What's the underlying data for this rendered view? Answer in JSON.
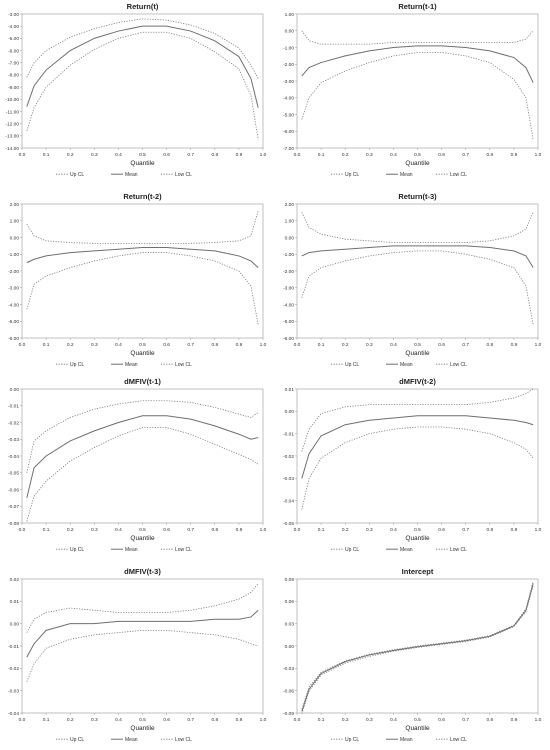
{
  "chart_data": [
    {
      "type": "line",
      "title": "Return(t)",
      "xlabel": "Quantile",
      "ylabel": "",
      "xlim": [
        0.0,
        1.0
      ],
      "ylim": [
        -14.0,
        -3.0
      ],
      "xticks": [
        "0.0",
        "0.1",
        "0.2",
        "0.3",
        "0.4",
        "0.5",
        "0.6",
        "0.7",
        "0.8",
        "0.9",
        "1.0"
      ],
      "yticks": [
        "-3.00",
        "-4.00",
        "-5.00",
        "-6.00",
        "-7.00",
        "-8.00",
        "-9.00",
        "-10.00",
        "-11.00",
        "-12.00",
        "-13.00",
        "-14.00"
      ],
      "x": [
        0.02,
        0.05,
        0.1,
        0.2,
        0.3,
        0.4,
        0.5,
        0.6,
        0.7,
        0.8,
        0.9,
        0.95,
        0.98
      ],
      "series": [
        {
          "name": "Up CL",
          "style": "dotted",
          "values": [
            -8.2,
            -7.0,
            -6.0,
            -4.9,
            -4.2,
            -3.7,
            -3.4,
            -3.5,
            -3.9,
            -4.6,
            -5.8,
            -7.2,
            -8.3
          ]
        },
        {
          "name": "Mean",
          "style": "solid",
          "values": [
            -10.6,
            -8.9,
            -7.6,
            -6.0,
            -5.0,
            -4.4,
            -4.0,
            -4.0,
            -4.4,
            -5.2,
            -6.5,
            -8.3,
            -10.7
          ]
        },
        {
          "name": "Low CL",
          "style": "dotted",
          "values": [
            -12.6,
            -10.7,
            -9.0,
            -7.2,
            -5.9,
            -5.0,
            -4.5,
            -4.5,
            -5.0,
            -6.1,
            -7.5,
            -9.7,
            -13.3
          ]
        }
      ]
    },
    {
      "type": "line",
      "title": "Return(t-1)",
      "xlabel": "Quantile",
      "ylabel": "",
      "xlim": [
        0.0,
        1.0
      ],
      "ylim": [
        -7.0,
        1.0
      ],
      "xticks": [
        "0.0",
        "0.1",
        "0.2",
        "0.3",
        "0.4",
        "0.5",
        "0.6",
        "0.7",
        "0.8",
        "0.9",
        "1.0"
      ],
      "yticks": [
        "1.00",
        "0.00",
        "-1.00",
        "-2.00",
        "-3.00",
        "-4.00",
        "-5.00",
        "-6.00",
        "-7.00"
      ],
      "x": [
        0.02,
        0.05,
        0.1,
        0.2,
        0.3,
        0.4,
        0.5,
        0.6,
        0.7,
        0.8,
        0.9,
        0.95,
        0.98
      ],
      "series": [
        {
          "name": "Up CL",
          "style": "dotted",
          "values": [
            0.0,
            -0.6,
            -0.8,
            -0.8,
            -0.8,
            -0.7,
            -0.7,
            -0.7,
            -0.7,
            -0.7,
            -0.7,
            -0.5,
            0.0
          ]
        },
        {
          "name": "Mean",
          "style": "solid",
          "values": [
            -2.7,
            -2.2,
            -1.9,
            -1.5,
            -1.2,
            -1.0,
            -0.9,
            -0.9,
            -1.0,
            -1.2,
            -1.6,
            -2.2,
            -3.1
          ]
        },
        {
          "name": "Low CL",
          "style": "dotted",
          "values": [
            -5.3,
            -4.0,
            -3.1,
            -2.4,
            -1.9,
            -1.5,
            -1.3,
            -1.3,
            -1.5,
            -1.9,
            -2.9,
            -4.0,
            -6.5
          ]
        }
      ]
    },
    {
      "type": "line",
      "title": "Return(t-2)",
      "xlabel": "Quantile",
      "ylabel": "",
      "xlim": [
        0.0,
        1.0
      ],
      "ylim": [
        -6.0,
        2.0
      ],
      "xticks": [
        "0.0",
        "0.1",
        "0.2",
        "0.3",
        "0.4",
        "0.5",
        "0.6",
        "0.7",
        "0.8",
        "0.9",
        "1.0"
      ],
      "yticks": [
        "2.00",
        "1.00",
        "0.00",
        "-1.00",
        "-2.00",
        "-3.00",
        "-4.00",
        "-5.00",
        "-6.00"
      ],
      "x": [
        0.02,
        0.05,
        0.1,
        0.2,
        0.3,
        0.4,
        0.5,
        0.6,
        0.7,
        0.8,
        0.9,
        0.95,
        0.98
      ],
      "series": [
        {
          "name": "Up CL",
          "style": "dotted",
          "values": [
            0.8,
            0.1,
            -0.2,
            -0.3,
            -0.35,
            -0.35,
            -0.35,
            -0.35,
            -0.35,
            -0.3,
            -0.2,
            0.1,
            1.6
          ]
        },
        {
          "name": "Mean",
          "style": "solid",
          "values": [
            -1.5,
            -1.3,
            -1.1,
            -0.9,
            -0.8,
            -0.7,
            -0.6,
            -0.6,
            -0.7,
            -0.8,
            -1.1,
            -1.4,
            -1.8
          ]
        },
        {
          "name": "Low CL",
          "style": "dotted",
          "values": [
            -4.3,
            -2.8,
            -2.3,
            -1.8,
            -1.4,
            -1.1,
            -0.9,
            -0.9,
            -1.1,
            -1.4,
            -2.0,
            -2.9,
            -5.2
          ]
        }
      ]
    },
    {
      "type": "line",
      "title": "Return(t-3)",
      "xlabel": "Quantile",
      "ylabel": "",
      "xlim": [
        0.0,
        1.0
      ],
      "ylim": [
        -6.0,
        2.0
      ],
      "xticks": [
        "0.0",
        "0.1",
        "0.2",
        "0.3",
        "0.4",
        "0.5",
        "0.6",
        "0.7",
        "0.8",
        "0.9",
        "1.0"
      ],
      "yticks": [
        "2.00",
        "1.00",
        "0.00",
        "-1.00",
        "-2.00",
        "-3.00",
        "-4.00",
        "-5.00",
        "-6.00"
      ],
      "x": [
        0.02,
        0.05,
        0.1,
        0.2,
        0.3,
        0.4,
        0.5,
        0.6,
        0.7,
        0.8,
        0.9,
        0.95,
        0.98
      ],
      "series": [
        {
          "name": "Up CL",
          "style": "dotted",
          "values": [
            1.5,
            0.6,
            0.2,
            -0.1,
            -0.2,
            -0.3,
            -0.3,
            -0.3,
            -0.3,
            -0.2,
            0.1,
            0.5,
            1.5
          ]
        },
        {
          "name": "Mean",
          "style": "solid",
          "values": [
            -1.1,
            -0.9,
            -0.8,
            -0.7,
            -0.6,
            -0.5,
            -0.5,
            -0.5,
            -0.5,
            -0.6,
            -0.8,
            -1.1,
            -1.8
          ]
        },
        {
          "name": "Low CL",
          "style": "dotted",
          "values": [
            -3.6,
            -2.3,
            -1.8,
            -1.4,
            -1.1,
            -0.9,
            -0.8,
            -0.8,
            -1.0,
            -1.3,
            -1.8,
            -2.9,
            -5.2
          ]
        }
      ]
    },
    {
      "type": "line",
      "title": "dMFIV(t-1)",
      "xlabel": "Quantile",
      "ylabel": "",
      "xlim": [
        0.0,
        1.0
      ],
      "ylim": [
        -0.08,
        0.0
      ],
      "xticks": [
        "0.0",
        "0.1",
        "0.2",
        "0.3",
        "0.4",
        "0.5",
        "0.6",
        "0.7",
        "0.8",
        "0.9",
        "1.0"
      ],
      "yticks": [
        "0.00",
        "-0.01",
        "-0.02",
        "-0.03",
        "-0.04",
        "-0.05",
        "-0.06",
        "-0.07",
        "-0.08"
      ],
      "x": [
        0.02,
        0.05,
        0.1,
        0.2,
        0.3,
        0.4,
        0.5,
        0.6,
        0.7,
        0.8,
        0.9,
        0.95,
        0.98
      ],
      "series": [
        {
          "name": "Up CL",
          "style": "dotted",
          "values": [
            -0.05,
            -0.031,
            -0.025,
            -0.017,
            -0.012,
            -0.009,
            -0.007,
            -0.007,
            -0.008,
            -0.011,
            -0.015,
            -0.017,
            -0.014
          ]
        },
        {
          "name": "Mean",
          "style": "solid",
          "values": [
            -0.065,
            -0.047,
            -0.04,
            -0.031,
            -0.025,
            -0.02,
            -0.016,
            -0.016,
            -0.018,
            -0.022,
            -0.027,
            -0.03,
            -0.029
          ]
        },
        {
          "name": "Low CL",
          "style": "dotted",
          "values": [
            -0.079,
            -0.064,
            -0.055,
            -0.043,
            -0.035,
            -0.028,
            -0.023,
            -0.023,
            -0.027,
            -0.033,
            -0.039,
            -0.042,
            -0.045
          ]
        }
      ]
    },
    {
      "type": "line",
      "title": "dMFIV(t-2)",
      "xlabel": "Quantile",
      "ylabel": "",
      "xlim": [
        0.0,
        1.0
      ],
      "ylim": [
        -0.05,
        0.01
      ],
      "xticks": [
        "0.0",
        "0.1",
        "0.2",
        "0.3",
        "0.4",
        "0.5",
        "0.6",
        "0.7",
        "0.8",
        "0.9",
        "1.0"
      ],
      "yticks": [
        "0.01",
        "0.00",
        "-0.01",
        "-0.02",
        "-0.03",
        "-0.04",
        "-0.05"
      ],
      "x": [
        0.02,
        0.05,
        0.1,
        0.2,
        0.3,
        0.4,
        0.5,
        0.6,
        0.7,
        0.8,
        0.9,
        0.95,
        0.98
      ],
      "series": [
        {
          "name": "Up CL",
          "style": "dotted",
          "values": [
            -0.018,
            -0.008,
            -0.001,
            0.002,
            0.003,
            0.003,
            0.003,
            0.003,
            0.003,
            0.004,
            0.006,
            0.008,
            0.01
          ]
        },
        {
          "name": "Mean",
          "style": "solid",
          "values": [
            -0.03,
            -0.019,
            -0.011,
            -0.006,
            -0.004,
            -0.003,
            -0.002,
            -0.002,
            -0.002,
            -0.003,
            -0.004,
            -0.005,
            -0.006
          ]
        },
        {
          "name": "Low CL",
          "style": "dotted",
          "values": [
            -0.044,
            -0.03,
            -0.021,
            -0.014,
            -0.01,
            -0.008,
            -0.007,
            -0.007,
            -0.008,
            -0.01,
            -0.014,
            -0.017,
            -0.021
          ]
        }
      ]
    },
    {
      "type": "line",
      "title": "dMFIV(t-3)",
      "xlabel": "Quantile",
      "ylabel": "",
      "xlim": [
        0.0,
        1.0
      ],
      "ylim": [
        -0.04,
        0.02
      ],
      "xticks": [
        "0.0",
        "0.1",
        "0.2",
        "0.3",
        "0.4",
        "0.5",
        "0.6",
        "0.7",
        "0.8",
        "0.9",
        "1.0"
      ],
      "yticks": [
        "0.02",
        "0.01",
        "0.00",
        "-0.01",
        "-0.02",
        "-0.03",
        "-0.04"
      ],
      "x": [
        0.02,
        0.05,
        0.1,
        0.2,
        0.3,
        0.4,
        0.5,
        0.6,
        0.7,
        0.8,
        0.9,
        0.95,
        0.98
      ],
      "series": [
        {
          "name": "Up CL",
          "style": "dotted",
          "values": [
            -0.004,
            0.002,
            0.005,
            0.007,
            0.006,
            0.005,
            0.005,
            0.005,
            0.006,
            0.008,
            0.011,
            0.014,
            0.018
          ]
        },
        {
          "name": "Mean",
          "style": "solid",
          "values": [
            -0.015,
            -0.009,
            -0.003,
            0.0,
            0.0,
            0.001,
            0.001,
            0.001,
            0.001,
            0.002,
            0.002,
            0.003,
            0.006
          ]
        },
        {
          "name": "Low CL",
          "style": "dotted",
          "values": [
            -0.026,
            -0.018,
            -0.011,
            -0.007,
            -0.005,
            -0.004,
            -0.003,
            -0.003,
            -0.004,
            -0.005,
            -0.007,
            -0.009,
            -0.01
          ]
        }
      ]
    },
    {
      "type": "line",
      "title": "Intercept",
      "xlabel": "Quantile",
      "ylabel": "",
      "xlim": [
        0.0,
        1.0
      ],
      "ylim": [
        -0.09,
        0.09
      ],
      "xticks": [
        "0.0",
        "0.1",
        "0.2",
        "0.3",
        "0.4",
        "0.5",
        "0.6",
        "0.7",
        "0.8",
        "0.9",
        "1.0"
      ],
      "yticks": [
        "0.09",
        "0.06",
        "0.03",
        "0.00",
        "-0.03",
        "-0.06",
        "-0.09"
      ],
      "x": [
        0.02,
        0.05,
        0.1,
        0.2,
        0.3,
        0.4,
        0.5,
        0.6,
        0.7,
        0.8,
        0.9,
        0.95,
        0.98
      ],
      "series": [
        {
          "name": "Up CL",
          "style": "dotted",
          "values": [
            -0.085,
            -0.055,
            -0.035,
            -0.02,
            -0.011,
            -0.005,
            0.0,
            0.004,
            0.008,
            0.014,
            0.028,
            0.05,
            0.087
          ]
        },
        {
          "name": "Mean",
          "style": "solid",
          "values": [
            -0.088,
            -0.058,
            -0.037,
            -0.021,
            -0.012,
            -0.006,
            -0.001,
            0.003,
            0.007,
            0.013,
            0.027,
            0.048,
            0.084
          ]
        },
        {
          "name": "Low CL",
          "style": "dotted",
          "values": [
            -0.091,
            -0.061,
            -0.039,
            -0.023,
            -0.014,
            -0.007,
            -0.002,
            0.002,
            0.006,
            0.012,
            0.026,
            0.046,
            0.081
          ]
        }
      ]
    }
  ]
}
